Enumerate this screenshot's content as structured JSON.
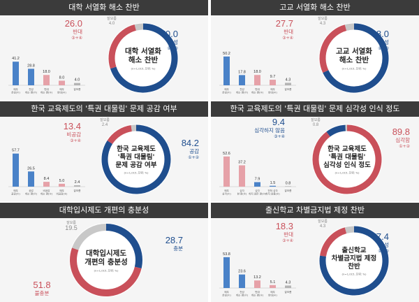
{
  "colors": {
    "navy": "#1f4e8e",
    "red": "#c9505a",
    "gray": "#c8c8c8",
    "bar_blue": "#4a82c8",
    "bar_pink": "#e6a1a8",
    "bar_gray": "#b4b4b4",
    "title_bg": "#3b3b3b"
  },
  "sample_note": "(n=1,015, 단위: %)",
  "chart_data": [
    {
      "type": "bar+donut",
      "title": "대학 서열화 해소 찬반",
      "center": "대학 서열화\n해소 찬반",
      "note": "(n=1,015, 단위: %)",
      "bars": [
        {
          "value": "41.2",
          "label": "매우\n찬성(①)",
          "color": "blue"
        },
        {
          "value": "28.8",
          "label": "찬성\n하는 편(②)",
          "color": "blue"
        },
        {
          "value": "18.0",
          "label": "반대\n하는 편(③)",
          "color": "pink"
        },
        {
          "value": "8.0",
          "label": "매우\n반대(④)",
          "color": "pink"
        },
        {
          "value": "4.0",
          "label": "잘모름",
          "color": "gray"
        }
      ],
      "donut": [
        {
          "value": "70.0",
          "label": "찬성",
          "sub": "①+②",
          "color": "navy"
        },
        {
          "value": "26.0",
          "label": "반대",
          "sub": "③+④",
          "color": "red"
        },
        {
          "value": "4.0",
          "label": "잘모름",
          "sub": "",
          "color": "gray"
        }
      ]
    },
    {
      "type": "bar+donut",
      "title": "고교 서열화 해소 찬반",
      "center": "고교 서열화\n해소 찬반",
      "note": "(n=1,015, 단위: %)",
      "bars": [
        {
          "value": "50.2",
          "label": "매우\n찬성(①)",
          "color": "blue"
        },
        {
          "value": "17.8",
          "label": "찬성\n하는 편(②)",
          "color": "blue"
        },
        {
          "value": "18.0",
          "label": "반대\n하는 편(③)",
          "color": "pink"
        },
        {
          "value": "9.7",
          "label": "매우\n반대(④)",
          "color": "pink"
        },
        {
          "value": "4.3",
          "label": "잘모름",
          "color": "gray"
        }
      ],
      "donut": [
        {
          "value": "68.0",
          "label": "찬성",
          "sub": "①+②",
          "color": "navy"
        },
        {
          "value": "27.7",
          "label": "반대",
          "sub": "③+④",
          "color": "red"
        },
        {
          "value": "4.3",
          "label": "잘모름",
          "sub": "",
          "color": "gray"
        }
      ]
    },
    {
      "type": "bar+donut",
      "title": "한국 교육제도의 '특권 대물림' 문제 공감 여부",
      "center": "한국 교육제도\n'특권 대물림'\n문제 공감 여부",
      "note": "(n=1,015, 단위: %)",
      "bars": [
        {
          "value": "57.7",
          "label": "매우\n공감(①)",
          "color": "blue"
        },
        {
          "value": "26.5",
          "label": "공감\n하는 편(②)",
          "color": "blue"
        },
        {
          "value": "8.4",
          "label": "비공감\n하는 편(③)",
          "color": "pink"
        },
        {
          "value": "5.0",
          "label": "매우\n비공감(④)",
          "color": "pink"
        },
        {
          "value": "2.4",
          "label": "잘모름",
          "color": "gray"
        }
      ],
      "donut": [
        {
          "value": "84.2",
          "label": "공감",
          "sub": "①+②",
          "color": "navy"
        },
        {
          "value": "13.4",
          "label": "비공감",
          "sub": "③+④",
          "color": "red"
        },
        {
          "value": "2.4",
          "label": "잘모름",
          "sub": "",
          "color": "gray"
        }
      ]
    },
    {
      "type": "bar+donut",
      "title": "한국 교육제도의 '특권 대물림' 문제 심각성 인식 정도",
      "center": "한국 교육제도\n'특권 대물림'\n심각성 인식 정도",
      "note": "(n=1,015, 단위: %)",
      "bars": [
        {
          "value": "52.6",
          "label": "매우\n심각(①)",
          "color": "pink"
        },
        {
          "value": "37.2",
          "label": "심각\n한 편(②)",
          "color": "pink"
        },
        {
          "value": "7.9",
          "label": "심각\n하지 않은 편(③)",
          "color": "blue"
        },
        {
          "value": "1.5",
          "label": "전혀 심각\n하지 않음(④)",
          "color": "blue"
        },
        {
          "value": "0.8",
          "label": "잘모름",
          "color": "gray"
        }
      ],
      "donut": [
        {
          "value": "89.8",
          "label": "심각함",
          "sub": "①+②",
          "color": "red"
        },
        {
          "value": "9.4",
          "label": "심각하지 않음",
          "sub": "③+④",
          "color": "navy"
        },
        {
          "value": "0.8",
          "label": "잘모름",
          "sub": "",
          "color": "gray"
        }
      ]
    },
    {
      "type": "donut",
      "title": "대학입시제도 개편의 충분성",
      "center": "대학입시제도\n개편의 충분성",
      "note": "(n=1,015, 단위: %)",
      "bars": [],
      "donut": [
        {
          "value": "28.7",
          "label": "충분",
          "sub": "",
          "color": "navy"
        },
        {
          "value": "51.8",
          "label": "불충분",
          "sub": "",
          "color": "red"
        },
        {
          "value": "19.5",
          "label": "잘모름",
          "sub": "",
          "color": "gray"
        }
      ]
    },
    {
      "type": "bar+donut",
      "title": "출신학교 차별금지법 제정 찬반",
      "center": "출신학교\n차별금지법 제정\n찬반",
      "note": "(n=1,015, 단위: %)",
      "bars": [
        {
          "value": "53.8",
          "label": "매우\n찬성(①)",
          "color": "blue"
        },
        {
          "value": "23.6",
          "label": "찬성\n하는 편(②)",
          "color": "blue"
        },
        {
          "value": "13.2",
          "label": "반대\n하는 편(③)",
          "color": "pink"
        },
        {
          "value": "5.1",
          "label": "매우\n반대(④)",
          "color": "pink"
        },
        {
          "value": "4.3",
          "label": "잘모름",
          "color": "gray"
        }
      ],
      "donut": [
        {
          "value": "77.4",
          "label": "찬성",
          "sub": "①+②",
          "color": "navy"
        },
        {
          "value": "18.3",
          "label": "반대",
          "sub": "③+④",
          "color": "red"
        },
        {
          "value": "4.3",
          "label": "잘모름",
          "sub": "",
          "color": "gray"
        }
      ]
    }
  ]
}
